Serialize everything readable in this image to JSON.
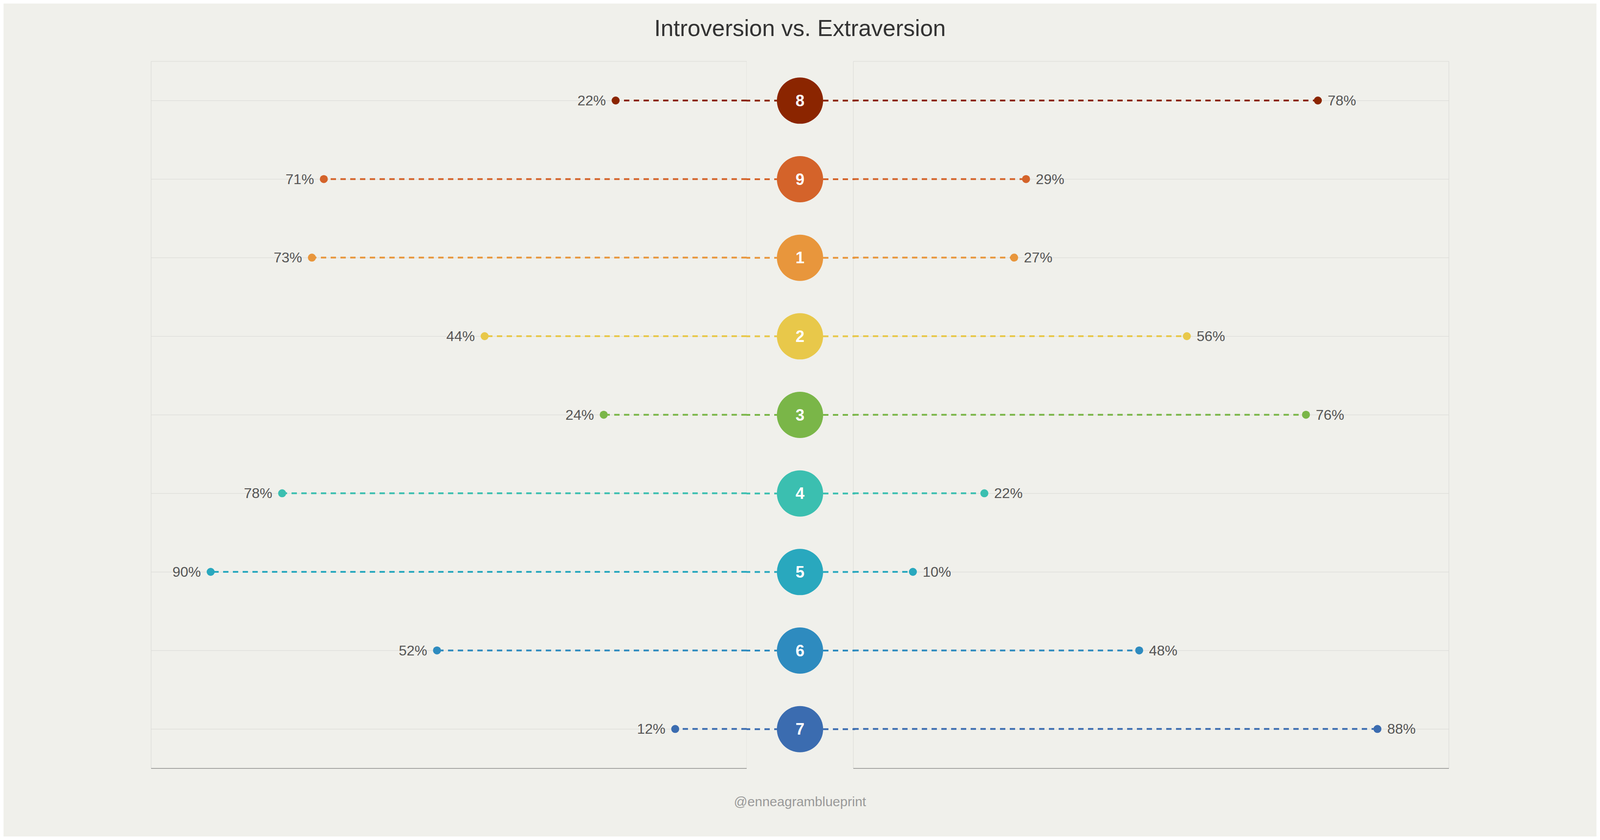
{
  "chart_data": {
    "type": "dumbbell",
    "title": "Introversion vs. Extraversion",
    "subtitle": "@enneagramblueprint",
    "orientation": "horizontal",
    "categories": [
      "8",
      "9",
      "1",
      "2",
      "3",
      "4",
      "5",
      "6",
      "7"
    ],
    "colors": [
      "#8B2500",
      "#D4632A",
      "#E8963C",
      "#E8C84A",
      "#7AB648",
      "#3BBFB0",
      "#29A8BE",
      "#2E8BBF",
      "#3B6CB0"
    ],
    "series": [
      {
        "values": [
          22,
          71,
          73,
          44,
          24,
          78,
          90,
          52,
          12
        ],
        "value_labels": [
          "22%",
          "71%",
          "73%",
          "44%",
          "24%",
          "78%",
          "90%",
          "52%",
          "12%"
        ]
      },
      {
        "values": [
          78,
          29,
          27,
          56,
          76,
          22,
          10,
          48,
          88
        ],
        "value_labels": [
          "78%",
          "29%",
          "27%",
          "56%",
          "76%",
          "22%",
          "10%",
          "48%",
          "88%"
        ]
      }
    ],
    "xlim": [
      0,
      100
    ],
    "xticks": [
      0,
      20,
      40,
      60,
      80,
      100
    ],
    "grid": true,
    "tick_labels": false,
    "data_labels": true,
    "marker": "circle",
    "line_style": "dashed"
  }
}
